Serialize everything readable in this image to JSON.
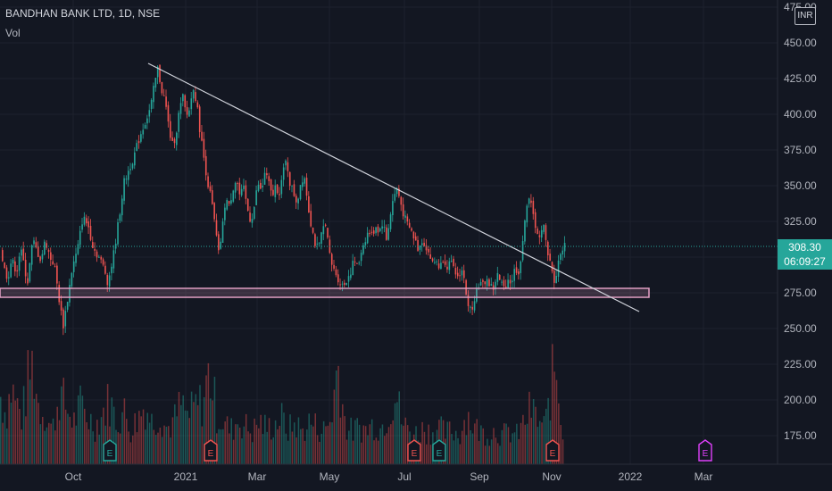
{
  "header": {
    "title": "BANDHAN BANK LTD, 1D, NSE",
    "indicator": "Vol"
  },
  "currency_badge": "INR",
  "last_price": {
    "price": "308.30",
    "countdown": "06:09:27"
  },
  "colors": {
    "up": "#26a69a",
    "down": "#ef5350",
    "background": "#131722",
    "grid": "#1e222d",
    "trendline": "#d1d4dc",
    "zone": "#e8a3c8",
    "earnings": "#ef5350",
    "earnings_up": "#26a69a"
  },
  "chart_data": {
    "type": "candlestick",
    "title": "BANDHAN BANK LTD, 1D, NSE",
    "y_axis": {
      "ticks": [
        "475.00",
        "450.00",
        "425.00",
        "400.00",
        "375.00",
        "350.00",
        "325.00",
        "300.00",
        "275.00",
        "250.00",
        "225.00",
        "200.00",
        "175.00"
      ],
      "ylim": [
        150,
        477
      ]
    },
    "x_axis": {
      "ticks": [
        "Oct",
        "2021",
        "Mar",
        "May",
        "Jul",
        "Sep",
        "Nov",
        "2022",
        "Mar"
      ]
    },
    "last_close": 308.3,
    "support_zone": [
      272,
      277
    ],
    "trendline": {
      "start": {
        "date": "2020-11-25",
        "price": 438
      },
      "end": {
        "date": "2021-12-23",
        "price": 263
      }
    },
    "earnings_markers": [
      {
        "label": "E",
        "month": "Oct 2020",
        "type": "positive"
      },
      {
        "label": "E",
        "month": "Jan 2021",
        "type": "negative"
      },
      {
        "label": "E",
        "month": "Jul 2021",
        "type": "negative"
      },
      {
        "label": "E",
        "month": "Aug 2021",
        "type": "positive"
      },
      {
        "label": "E",
        "month": "Nov 2021",
        "type": "negative"
      },
      {
        "label": "E",
        "month": "Feb 2022",
        "type": "upcoming"
      }
    ],
    "price_path": [
      [
        0,
        305
      ],
      [
        4,
        292
      ],
      [
        8,
        285
      ],
      [
        12,
        298
      ],
      [
        18,
        290
      ],
      [
        22,
        306
      ],
      [
        26,
        295
      ],
      [
        30,
        282
      ],
      [
        36,
        312
      ],
      [
        40,
        305
      ],
      [
        45,
        298
      ],
      [
        50,
        312
      ],
      [
        55,
        300
      ],
      [
        60,
        295
      ],
      [
        66,
        268
      ],
      [
        70,
        252
      ],
      [
        76,
        275
      ],
      [
        80,
        292
      ],
      [
        86,
        305
      ],
      [
        92,
        328
      ],
      [
        98,
        322
      ],
      [
        104,
        306
      ],
      [
        110,
        300
      ],
      [
        116,
        292
      ],
      [
        120,
        282
      ],
      [
        126,
        300
      ],
      [
        132,
        325
      ],
      [
        138,
        352
      ],
      [
        144,
        362
      ],
      [
        150,
        372
      ],
      [
        156,
        385
      ],
      [
        162,
        395
      ],
      [
        168,
        405
      ],
      [
        172,
        420
      ],
      [
        176,
        432
      ],
      [
        180,
        418
      ],
      [
        184,
        410
      ],
      [
        188,
        392
      ],
      [
        192,
        378
      ],
      [
        196,
        385
      ],
      [
        200,
        402
      ],
      [
        204,
        412
      ],
      [
        208,
        398
      ],
      [
        212,
        405
      ],
      [
        216,
        420
      ],
      [
        220,
        405
      ],
      [
        224,
        385
      ],
      [
        228,
        368
      ],
      [
        232,
        352
      ],
      [
        236,
        340
      ],
      [
        240,
        322
      ],
      [
        244,
        302
      ],
      [
        248,
        318
      ],
      [
        252,
        342
      ],
      [
        256,
        335
      ],
      [
        260,
        348
      ],
      [
        264,
        355
      ],
      [
        268,
        342
      ],
      [
        272,
        348
      ],
      [
        276,
        335
      ],
      [
        280,
        325
      ],
      [
        284,
        335
      ],
      [
        288,
        352
      ],
      [
        292,
        345
      ],
      [
        296,
        360
      ],
      [
        300,
        352
      ],
      [
        304,
        342
      ],
      [
        308,
        350
      ],
      [
        312,
        345
      ],
      [
        316,
        358
      ],
      [
        320,
        368
      ],
      [
        324,
        352
      ],
      [
        328,
        345
      ],
      [
        332,
        338
      ],
      [
        336,
        352
      ],
      [
        340,
        358
      ],
      [
        344,
        338
      ],
      [
        348,
        322
      ],
      [
        352,
        310
      ],
      [
        356,
        305
      ],
      [
        360,
        318
      ],
      [
        364,
        325
      ],
      [
        368,
        302
      ],
      [
        372,
        292
      ],
      [
        376,
        288
      ],
      [
        380,
        282
      ],
      [
        384,
        280
      ],
      [
        388,
        285
      ],
      [
        392,
        290
      ],
      [
        396,
        298
      ],
      [
        400,
        292
      ],
      [
        404,
        305
      ],
      [
        408,
        312
      ],
      [
        412,
        318
      ],
      [
        416,
        315
      ],
      [
        420,
        322
      ],
      [
        424,
        318
      ],
      [
        428,
        325
      ],
      [
        432,
        312
      ],
      [
        436,
        328
      ],
      [
        440,
        342
      ],
      [
        444,
        348
      ],
      [
        448,
        338
      ],
      [
        452,
        328
      ],
      [
        456,
        322
      ],
      [
        460,
        318
      ],
      [
        464,
        312
      ],
      [
        468,
        305
      ],
      [
        472,
        312
      ],
      [
        476,
        308
      ],
      [
        480,
        302
      ],
      [
        484,
        295
      ],
      [
        488,
        298
      ],
      [
        492,
        292
      ],
      [
        496,
        300
      ],
      [
        500,
        294
      ],
      [
        504,
        296
      ],
      [
        508,
        290
      ],
      [
        512,
        286
      ],
      [
        516,
        292
      ],
      [
        520,
        282
      ],
      [
        524,
        262
      ],
      [
        528,
        265
      ],
      [
        532,
        275
      ],
      [
        536,
        282
      ],
      [
        540,
        280
      ],
      [
        544,
        285
      ],
      [
        548,
        280
      ],
      [
        552,
        278
      ],
      [
        556,
        288
      ],
      [
        560,
        282
      ],
      [
        564,
        278
      ],
      [
        568,
        285
      ],
      [
        572,
        282
      ],
      [
        576,
        292
      ],
      [
        580,
        290
      ],
      [
        584,
        302
      ],
      [
        588,
        335
      ],
      [
        592,
        342
      ],
      [
        596,
        330
      ],
      [
        600,
        320
      ],
      [
        604,
        312
      ],
      [
        608,
        322
      ],
      [
        612,
        305
      ],
      [
        616,
        298
      ],
      [
        620,
        280
      ],
      [
        624,
        295
      ],
      [
        628,
        305
      ],
      [
        632,
        308
      ]
    ],
    "volume_path": [
      [
        0,
        80
      ],
      [
        6,
        60
      ],
      [
        12,
        90
      ],
      [
        18,
        70
      ],
      [
        24,
        55
      ],
      [
        30,
        95
      ],
      [
        36,
        120
      ],
      [
        42,
        70
      ],
      [
        50,
        60
      ],
      [
        58,
        40
      ],
      [
        66,
        85
      ],
      [
        74,
        65
      ],
      [
        82,
        50
      ],
      [
        90,
        70
      ],
      [
        98,
        55
      ],
      [
        106,
        45
      ],
      [
        114,
        60
      ],
      [
        122,
        75
      ],
      [
        130,
        50
      ],
      [
        138,
        62
      ],
      [
        146,
        40
      ],
      [
        154,
        55
      ],
      [
        162,
        70
      ],
      [
        170,
        48
      ],
      [
        178,
        60
      ],
      [
        186,
        42
      ],
      [
        194,
        50
      ],
      [
        202,
        70
      ],
      [
        210,
        55
      ],
      [
        218,
        68
      ],
      [
        226,
        72
      ],
      [
        234,
        110
      ],
      [
        242,
        60
      ],
      [
        250,
        48
      ],
      [
        258,
        40
      ],
      [
        266,
        52
      ],
      [
        274,
        45
      ],
      [
        282,
        38
      ],
      [
        290,
        50
      ],
      [
        298,
        42
      ],
      [
        306,
        46
      ],
      [
        314,
        55
      ],
      [
        322,
        40
      ],
      [
        330,
        48
      ],
      [
        338,
        38
      ],
      [
        346,
        50
      ],
      [
        354,
        44
      ],
      [
        362,
        40
      ],
      [
        370,
        52
      ],
      [
        378,
        120
      ],
      [
        386,
        46
      ],
      [
        394,
        38
      ],
      [
        402,
        44
      ],
      [
        410,
        40
      ],
      [
        418,
        48
      ],
      [
        426,
        42
      ],
      [
        434,
        60
      ],
      [
        442,
        86
      ],
      [
        450,
        48
      ],
      [
        458,
        40
      ],
      [
        466,
        36
      ],
      [
        474,
        42
      ],
      [
        482,
        38
      ],
      [
        490,
        44
      ],
      [
        498,
        36
      ],
      [
        506,
        40
      ],
      [
        514,
        34
      ],
      [
        522,
        60
      ],
      [
        530,
        44
      ],
      [
        538,
        38
      ],
      [
        546,
        36
      ],
      [
        554,
        40
      ],
      [
        562,
        34
      ],
      [
        570,
        38
      ],
      [
        578,
        34
      ],
      [
        586,
        48
      ],
      [
        594,
        66
      ],
      [
        602,
        50
      ],
      [
        610,
        44
      ],
      [
        618,
        100
      ],
      [
        622,
        120
      ],
      [
        626,
        70
      ],
      [
        630,
        40
      ]
    ]
  }
}
